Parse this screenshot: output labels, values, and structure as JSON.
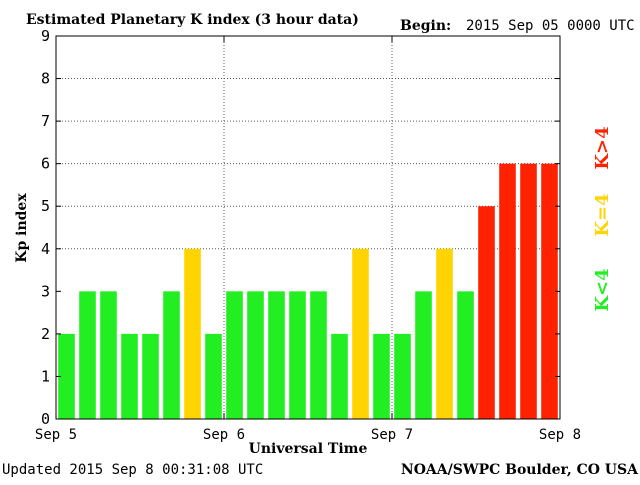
{
  "header": {
    "title": "Estimated Planetary K index (3 hour data)",
    "begin_label": "Begin:",
    "begin_value": "2015 Sep 05 0000 UTC"
  },
  "footer": {
    "updated": "Updated 2015 Sep  8 00:31:08 UTC",
    "credit": "NOAA/SWPC Boulder, CO USA"
  },
  "legend": {
    "low": "K<4",
    "mid": "K=4",
    "high": "K>4"
  },
  "colors": {
    "low": "#22ee22",
    "mid": "#ffd400",
    "high": "#ff2200",
    "axis": "#000000",
    "grid": "#555555"
  },
  "chart_data": {
    "type": "bar",
    "ylabel": "Kp index",
    "xlabel": "Universal Time",
    "ylim": [
      0,
      9
    ],
    "y_ticks": [
      "0",
      "1",
      "2",
      "3",
      "4",
      "5",
      "6",
      "7",
      "8",
      "9"
    ],
    "x_tick_labels": [
      "Sep 5",
      "Sep 6",
      "Sep 7",
      "Sep 8"
    ],
    "bars_per_day": 8,
    "days": 3,
    "values": [
      2,
      3,
      3,
      2,
      2,
      3,
      4,
      2,
      3,
      3,
      3,
      3,
      3,
      2,
      4,
      2,
      2,
      3,
      4,
      3,
      5,
      6,
      6,
      6
    ],
    "grid": "dotted, at days and y=4..8"
  }
}
